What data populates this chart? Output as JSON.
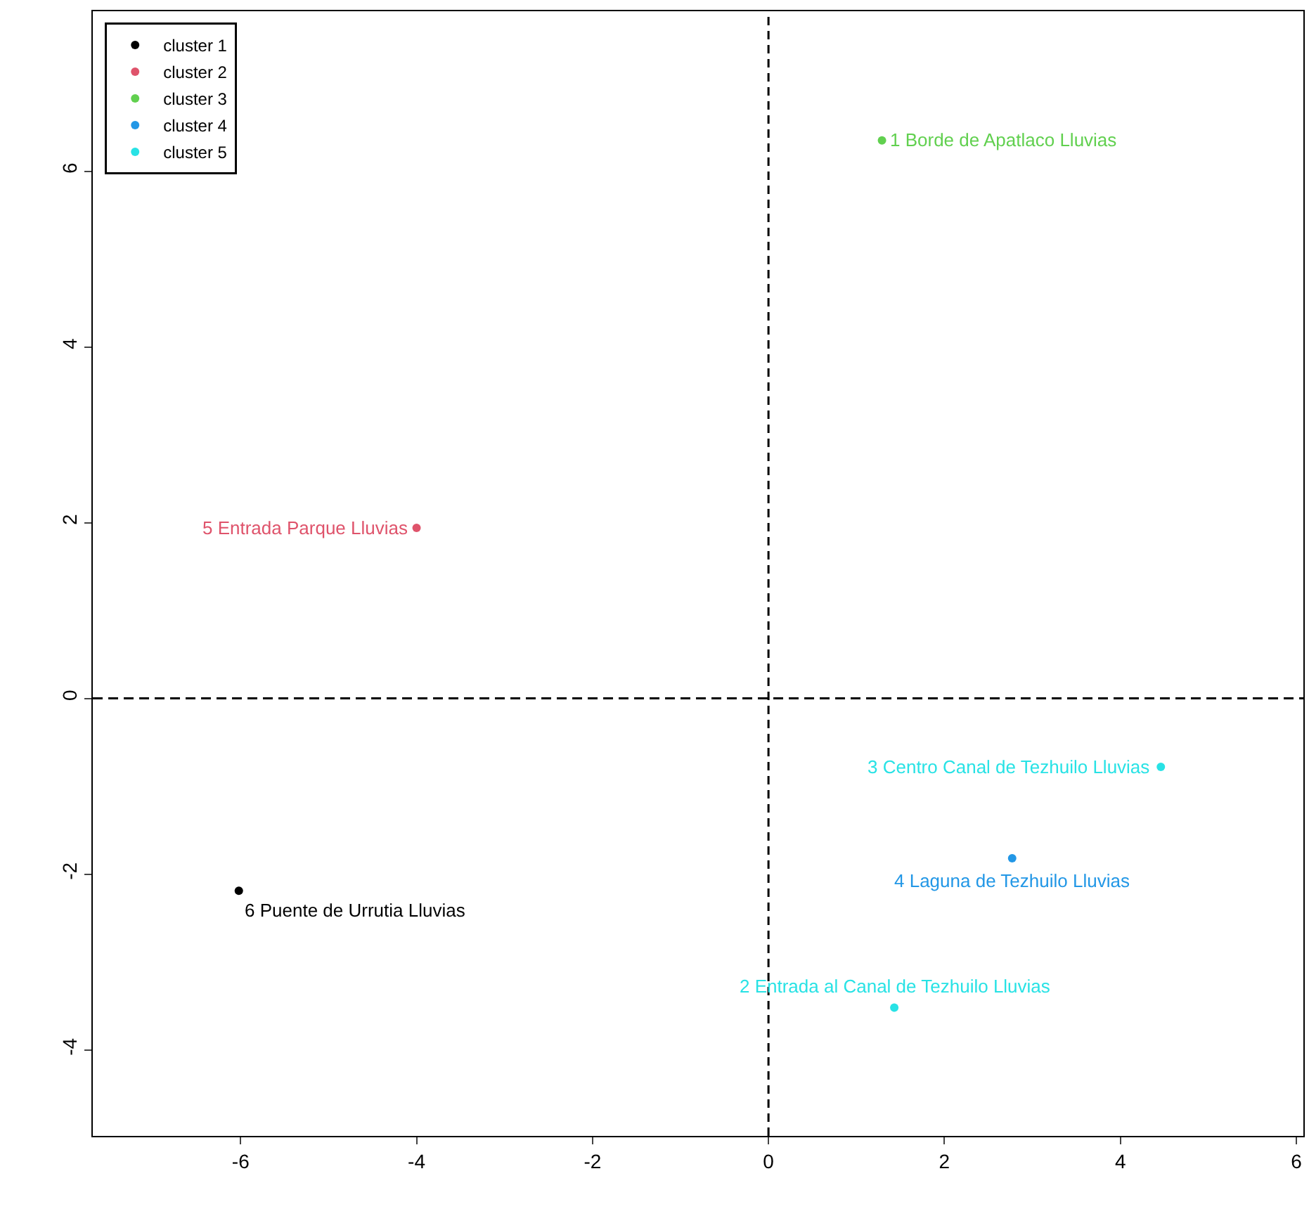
{
  "chart_data": {
    "type": "scatter",
    "series": [
      {
        "name": "cluster 1",
        "color": "#000000",
        "x": [
          -6.02
        ],
        "values": [
          -2.19
        ]
      },
      {
        "name": "cluster 2",
        "color": "#df536b",
        "x": [
          -4.0
        ],
        "values": [
          1.94
        ]
      },
      {
        "name": "cluster 3",
        "color": "#61d04f",
        "x": [
          1.29
        ],
        "values": [
          6.35
        ]
      },
      {
        "name": "cluster 4",
        "color": "#2297e6",
        "x": [
          2.77
        ],
        "values": [
          -1.82
        ]
      },
      {
        "name": "cluster 5",
        "color": "#28e2e5",
        "x": [
          4.46,
          1.43
        ],
        "values": [
          -0.78,
          -3.52
        ]
      }
    ],
    "annotations": [
      {
        "text": "1 Borde de Apatlaco Lluvias",
        "x": 1.29,
        "y": 6.35
      },
      {
        "text": "5 Entrada Parque Lluvias",
        "x": -4.0,
        "y": 1.94
      },
      {
        "text": "3 Centro Canal de Tezhuilo Lluvias",
        "x": 4.46,
        "y": -0.78
      },
      {
        "text": "4 Laguna de Tezhuilo Lluvias",
        "x": 2.77,
        "y": -1.82
      },
      {
        "text": "2 Entrada al Canal de Tezhuilo Lluvias",
        "x": 1.43,
        "y": -3.52
      },
      {
        "text": "6 Puente de Urrutia Lluvias",
        "x": -6.02,
        "y": -2.19
      }
    ],
    "xlim": [
      -7.68,
      6.08
    ],
    "ylim": [
      -4.98,
      7.82
    ],
    "xticks": [
      -6,
      -4,
      -2,
      0,
      2,
      4,
      6
    ],
    "yticks": [
      -4,
      -2,
      0,
      2,
      4,
      6
    ],
    "ref_lines": [
      {
        "axis": "x",
        "value": 0,
        "line_style": "dashed",
        "color": "#000000"
      },
      {
        "axis": "y",
        "value": 0,
        "line_style": "dashed",
        "color": "#000000"
      }
    ],
    "marker": "circle",
    "legend": "top left"
  }
}
